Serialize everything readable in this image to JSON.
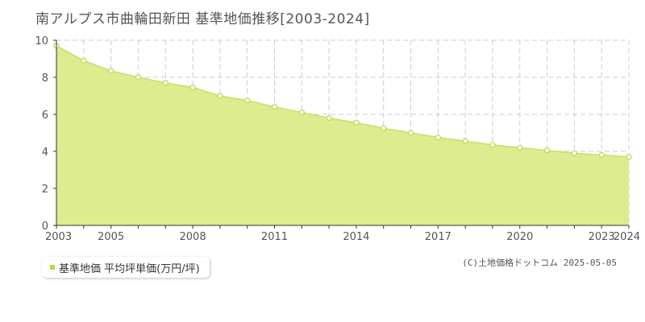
{
  "chart_data": {
    "type": "area",
    "title": "南アルプス市曲輪田新田 基準地価推移[2003-2024]",
    "x": [
      2003,
      2004,
      2005,
      2006,
      2007,
      2008,
      2009,
      2010,
      2011,
      2012,
      2013,
      2014,
      2015,
      2016,
      2017,
      2018,
      2019,
      2020,
      2021,
      2022,
      2023,
      2024
    ],
    "x_tick_labels": [
      "2003",
      "2005",
      "2008",
      "2011",
      "2014",
      "2017",
      "2020",
      "2023",
      "2024"
    ],
    "x_ticks": [
      2003,
      2005,
      2008,
      2011,
      2014,
      2017,
      2020,
      2023,
      2024
    ],
    "y_ticks": [
      0,
      2,
      4,
      6,
      8,
      10
    ],
    "ylim": [
      0,
      10
    ],
    "xlim": [
      2003,
      2024
    ],
    "grid": true,
    "series": [
      {
        "name": "基準地価 平均坪単価(万円/坪)",
        "values": [
          9.7,
          8.9,
          8.35,
          8.0,
          7.7,
          7.45,
          7.0,
          6.75,
          6.4,
          6.1,
          5.8,
          5.55,
          5.25,
          5.0,
          4.75,
          4.55,
          4.35,
          4.2,
          4.05,
          3.9,
          3.8,
          3.7
        ]
      }
    ],
    "legend_position": "bottom-left"
  },
  "colors": {
    "fill": "#dcec8e",
    "line": "#c5e06a",
    "marker": "#b8d94a",
    "grid": "#cccccc"
  },
  "credit": "(C)土地価格ドットコム 2025-05-05"
}
